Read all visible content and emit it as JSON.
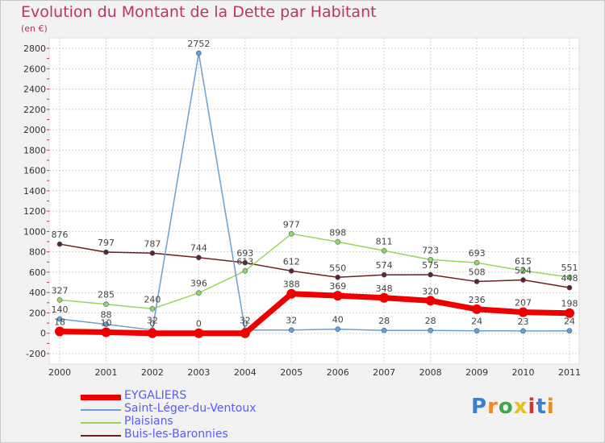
{
  "title": "Evolution du Montant de la Dette par Habitant",
  "subtitle": "(en €)",
  "logo": {
    "text": "Proxiti",
    "colors": [
      "#3a7fd0",
      "#f08a1e",
      "#3aa84a",
      "#e6c21e",
      "#d0342c",
      "#3a7fd0",
      "#f08a1e"
    ]
  },
  "chart_data": {
    "type": "line",
    "x": [
      "2000",
      "2001",
      "2002",
      "2003",
      "2004",
      "2005",
      "2006",
      "2007",
      "2008",
      "2009",
      "2010",
      "2011"
    ],
    "ylim": [
      -200,
      2800
    ],
    "yticks": [
      -200,
      0,
      200,
      400,
      600,
      800,
      1000,
      1200,
      1400,
      1600,
      1800,
      2000,
      2200,
      2400,
      2600,
      2800
    ],
    "grid": true,
    "legend_position": "bottom-left",
    "series": [
      {
        "name": "Buis-les-Baronnies",
        "color": "#6b1f1f",
        "width": 1.5,
        "values": [
          876,
          797,
          787,
          744,
          693,
          612,
          550,
          574,
          575,
          508,
          524,
          448
        ]
      },
      {
        "name": "Plaisians",
        "color": "#9ad45a",
        "width": 1.5,
        "values": [
          327,
          285,
          240,
          396,
          613,
          977,
          898,
          811,
          723,
          693,
          615,
          551
        ]
      },
      {
        "name": "Saint-Léger-du-Ventoux",
        "color": "#6c9fcf",
        "width": 1.5,
        "values": [
          140,
          88,
          32,
          2752,
          32,
          32,
          40,
          28,
          28,
          24,
          23,
          24
        ]
      },
      {
        "name": "EYGALIERS",
        "color": "#ee0000",
        "width": 7,
        "values": [
          18,
          10,
          0,
          0,
          0,
          388,
          369,
          348,
          320,
          236,
          207,
          198
        ]
      }
    ],
    "point_labels": [
      {
        "series": "Buis-les-Baronnies",
        "labels": [
          "876",
          "797",
          "787",
          "744",
          "693",
          "612",
          "550",
          "574",
          "575",
          "508",
          "524",
          "448"
        ]
      },
      {
        "series": "Plaisians",
        "labels": [
          "327",
          "285",
          "240",
          "396",
          "613",
          "977",
          "898",
          "811",
          "723",
          "693",
          "615",
          "551"
        ]
      },
      {
        "series": "Saint-Léger-du-Ventoux",
        "labels": [
          "140",
          "88",
          "32",
          "2752",
          "32",
          "32",
          "40",
          "28",
          "28",
          "24",
          "23",
          "24"
        ]
      },
      {
        "series": "EYGALIERS",
        "labels": [
          "18",
          "10",
          "0",
          "0",
          "0",
          "388",
          "369",
          "348",
          "320",
          "236",
          "207",
          "198"
        ]
      }
    ]
  },
  "legend": [
    {
      "label": "EYGALIERS",
      "color": "#ee0000",
      "thickness": 7,
      "text_color": "#5a5aff"
    },
    {
      "label": "Saint-Léger-du-Ventoux",
      "color": "#6c9fcf",
      "thickness": 2,
      "text_color": "#5a5aff"
    },
    {
      "label": "Plaisians",
      "color": "#9ad45a",
      "thickness": 2,
      "text_color": "#5a5aff"
    },
    {
      "label": "Buis-les-Baronnies",
      "color": "#6b1f1f",
      "thickness": 2,
      "text_color": "#5a5aff"
    }
  ]
}
